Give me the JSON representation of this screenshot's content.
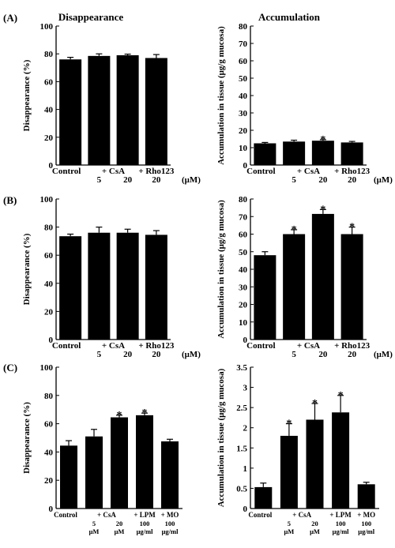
{
  "figure": {
    "column_titles": [
      "Disappearance",
      "Accumulation"
    ],
    "panel_labels": [
      "(A)",
      "(B)",
      "(C)"
    ],
    "unit_label": "(μM)"
  },
  "chart_data": [
    {
      "id": "A-left",
      "type": "bar",
      "title": "Disappearance",
      "ylabel": "Disappearance (%)",
      "ylim": [
        0,
        100
      ],
      "yticks": [
        0,
        20,
        40,
        60,
        80,
        100
      ],
      "categories": [
        "Control",
        "CsA 5",
        "CsA 20",
        "Rho123 20"
      ],
      "values": [
        76,
        78.5,
        79,
        77
      ],
      "errors": [
        1.5,
        1.5,
        0.8,
        2.5
      ],
      "significant": [
        false,
        false,
        false,
        false
      ],
      "xlabels": [
        {
          "text": "Control",
          "cat": 0,
          "row": 1
        },
        {
          "text": "+ CsA",
          "cat": 1.5,
          "row": 1
        },
        {
          "text": "5",
          "cat": 1,
          "row": 2
        },
        {
          "text": "20",
          "cat": 2,
          "row": 2
        },
        {
          "text": "+ Rho123",
          "cat": 3,
          "row": 1
        },
        {
          "text": "20",
          "cat": 3,
          "row": 2
        }
      ]
    },
    {
      "id": "A-right",
      "type": "bar",
      "title": "Accumulation",
      "ylabel": "Accumulation in tissue (μg/g mucosa)",
      "ylim": [
        0,
        80
      ],
      "yticks": [
        0,
        10,
        20,
        30,
        40,
        50,
        60,
        70,
        80
      ],
      "categories": [
        "Control",
        "CsA 5",
        "CsA 20",
        "Rho123 20"
      ],
      "values": [
        12.5,
        13.5,
        14,
        13
      ],
      "errors": [
        0.5,
        0.8,
        0.6,
        0.6
      ],
      "significant": [
        false,
        false,
        true,
        false
      ],
      "xlabels": [
        {
          "text": "Control",
          "cat": 0,
          "row": 1
        },
        {
          "text": "+ CsA",
          "cat": 1.5,
          "row": 1
        },
        {
          "text": "5",
          "cat": 1,
          "row": 2
        },
        {
          "text": "20",
          "cat": 2,
          "row": 2
        },
        {
          "text": "+ Rho123",
          "cat": 3,
          "row": 1
        },
        {
          "text": "20",
          "cat": 3,
          "row": 2
        }
      ]
    },
    {
      "id": "B-left",
      "type": "bar",
      "ylabel": "Disappearance (%)",
      "ylim": [
        0,
        100
      ],
      "yticks": [
        0,
        20,
        40,
        60,
        80,
        100
      ],
      "categories": [
        "Control",
        "CsA 5",
        "CsA 20",
        "Rho123 20"
      ],
      "values": [
        73.5,
        76,
        76,
        74.5
      ],
      "errors": [
        1.5,
        4,
        2.5,
        3
      ],
      "significant": [
        false,
        false,
        false,
        false
      ],
      "xlabels": [
        {
          "text": "Control",
          "cat": 0,
          "row": 1
        },
        {
          "text": "+ CsA",
          "cat": 1.5,
          "row": 1
        },
        {
          "text": "5",
          "cat": 1,
          "row": 2
        },
        {
          "text": "20",
          "cat": 2,
          "row": 2
        },
        {
          "text": "+ Rho123",
          "cat": 3,
          "row": 1
        },
        {
          "text": "20",
          "cat": 3,
          "row": 2
        }
      ]
    },
    {
      "id": "B-right",
      "type": "bar",
      "ylabel": "Accumulation in tissue (μg/g mucosa)",
      "ylim": [
        0,
        80
      ],
      "yticks": [
        0,
        10,
        20,
        30,
        40,
        50,
        60,
        70,
        80
      ],
      "categories": [
        "Control",
        "CsA 5",
        "CsA 20",
        "Rho123 20"
      ],
      "values": [
        48,
        60,
        71.5,
        60
      ],
      "errors": [
        2,
        2.5,
        2.5,
        4
      ],
      "significant": [
        false,
        true,
        true,
        true
      ],
      "xlabels": [
        {
          "text": "Control",
          "cat": 0,
          "row": 1
        },
        {
          "text": "+ CsA",
          "cat": 1.5,
          "row": 1
        },
        {
          "text": "5",
          "cat": 1,
          "row": 2
        },
        {
          "text": "20",
          "cat": 2,
          "row": 2
        },
        {
          "text": "+ Rho123",
          "cat": 3,
          "row": 1
        },
        {
          "text": "20",
          "cat": 3,
          "row": 2
        }
      ]
    },
    {
      "id": "C-left",
      "type": "bar",
      "ylabel": "Disappearance (%)",
      "ylim": [
        0,
        100
      ],
      "yticks": [
        0,
        20,
        40,
        60,
        80,
        100
      ],
      "categories": [
        "Control",
        "CsA 5 μM",
        "CsA 20 μM",
        "LPM 100 μg/ml",
        "MO 100 μg/ml"
      ],
      "values": [
        44.5,
        51,
        64.5,
        66,
        47.5
      ],
      "errors": [
        3.5,
        5,
        1.5,
        1.5,
        1.5
      ],
      "significant": [
        false,
        false,
        true,
        true,
        false
      ],
      "xlabels": [
        {
          "text": "Control",
          "cat": 0,
          "row": 1
        },
        {
          "text": "+ CsA",
          "cat": 1.5,
          "row": 1
        },
        {
          "text": "5",
          "cat": 1,
          "row": 2
        },
        {
          "text": "μM",
          "cat": 1,
          "row": 3
        },
        {
          "text": "20",
          "cat": 2,
          "row": 2
        },
        {
          "text": "μM",
          "cat": 2,
          "row": 3
        },
        {
          "text": "+ LPM",
          "cat": 3,
          "row": 1
        },
        {
          "text": "100",
          "cat": 3,
          "row": 2
        },
        {
          "text": "μg/ml",
          "cat": 3,
          "row": 3
        },
        {
          "text": "+ MO",
          "cat": 4,
          "row": 1
        },
        {
          "text": "100",
          "cat": 4,
          "row": 2
        },
        {
          "text": "μg/ml",
          "cat": 4,
          "row": 3
        }
      ]
    },
    {
      "id": "C-right",
      "type": "bar",
      "ylabel": "Accumulation in tissue (μg/g mucosa)",
      "ylim": [
        0,
        3.5
      ],
      "yticks": [
        0,
        0.5,
        1,
        1.5,
        2,
        2.5,
        3,
        3.5
      ],
      "categories": [
        "Control",
        "CsA 5 μM",
        "CsA 20 μM",
        "LPM 100 μg/ml",
        "MO 100 μg/ml"
      ],
      "values": [
        0.53,
        1.8,
        2.2,
        2.38,
        0.6
      ],
      "errors": [
        0.1,
        0.3,
        0.4,
        0.42,
        0.05
      ],
      "significant": [
        false,
        true,
        true,
        true,
        false
      ],
      "xlabels": [
        {
          "text": "Control",
          "cat": 0,
          "row": 1
        },
        {
          "text": "+ CsA",
          "cat": 1.5,
          "row": 1
        },
        {
          "text": "5",
          "cat": 1,
          "row": 2
        },
        {
          "text": "μM",
          "cat": 1,
          "row": 3
        },
        {
          "text": "20",
          "cat": 2,
          "row": 2
        },
        {
          "text": "μM",
          "cat": 2,
          "row": 3
        },
        {
          "text": "+ LPM",
          "cat": 3,
          "row": 1
        },
        {
          "text": "100",
          "cat": 3,
          "row": 2
        },
        {
          "text": "μg/ml",
          "cat": 3,
          "row": 3
        },
        {
          "text": "+ MO",
          "cat": 4,
          "row": 1
        },
        {
          "text": "100",
          "cat": 4,
          "row": 2
        },
        {
          "text": "μg/ml",
          "cat": 4,
          "row": 3
        }
      ]
    }
  ]
}
